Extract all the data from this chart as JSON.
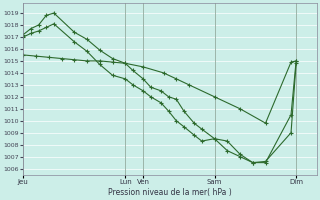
{
  "background_color": "#cceee8",
  "grid_color": "#ffffff",
  "line_color": "#2d6a2d",
  "ylabel": "Pression niveau de la mer( hPa )",
  "ylim": [
    1005.5,
    1019.8
  ],
  "yticks": [
    1006,
    1007,
    1008,
    1009,
    1010,
    1011,
    1012,
    1013,
    1014,
    1015,
    1016,
    1017,
    1018,
    1019
  ],
  "xlim_left": 0,
  "xlim_right": 115,
  "xtick_positions": [
    0,
    40,
    47,
    75,
    107
  ],
  "xtick_labels": [
    "Jeu",
    "Lun",
    "Ven",
    "Sam",
    "Dim"
  ],
  "vline_positions": [
    0,
    40,
    47,
    75,
    107
  ],
  "line1_x": [
    0,
    3,
    6,
    9,
    12,
    20,
    25,
    30,
    35,
    40,
    43,
    47,
    50,
    54,
    57,
    60,
    63,
    67,
    70,
    75,
    80,
    85,
    90,
    95,
    105,
    107
  ],
  "line1_y": [
    1017.2,
    1017.7,
    1018.0,
    1018.8,
    1019.0,
    1017.4,
    1016.8,
    1015.9,
    1015.2,
    1014.8,
    1014.2,
    1013.5,
    1012.8,
    1012.5,
    1012.0,
    1011.8,
    1010.8,
    1009.8,
    1009.3,
    1008.5,
    1007.5,
    1007.0,
    1006.5,
    1006.6,
    1009.0,
    1014.8
  ],
  "line2_x": [
    0,
    3,
    6,
    9,
    12,
    20,
    25,
    30,
    35,
    40,
    43,
    47,
    50,
    54,
    57,
    60,
    63,
    67,
    70,
    75,
    80,
    85,
    90,
    95,
    105,
    107
  ],
  "line2_y": [
    1017.0,
    1017.3,
    1017.5,
    1017.8,
    1018.1,
    1016.6,
    1015.8,
    1014.7,
    1013.8,
    1013.5,
    1013.0,
    1012.5,
    1012.0,
    1011.5,
    1010.8,
    1010.0,
    1009.5,
    1008.8,
    1008.3,
    1008.5,
    1008.3,
    1007.2,
    1006.5,
    1006.5,
    1010.5,
    1015.0
  ],
  "line3_x": [
    0,
    5,
    10,
    15,
    20,
    25,
    30,
    35,
    40,
    47,
    55,
    60,
    65,
    75,
    85,
    95,
    105,
    107
  ],
  "line3_y": [
    1015.5,
    1015.4,
    1015.3,
    1015.2,
    1015.1,
    1015.0,
    1015.0,
    1014.9,
    1014.8,
    1014.5,
    1014.0,
    1013.5,
    1013.0,
    1012.0,
    1011.0,
    1009.8,
    1014.9,
    1015.0
  ]
}
